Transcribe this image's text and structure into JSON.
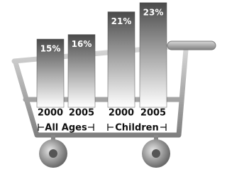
{
  "chart_data": {
    "type": "bar",
    "categories": [
      "2000",
      "2005",
      "2000",
      "2005"
    ],
    "groups": [
      "All Ages",
      "Children"
    ],
    "values": [
      15,
      16,
      21,
      23
    ],
    "value_labels": [
      "15%",
      "16%",
      "21%",
      "23%"
    ],
    "color": "#555555"
  }
}
